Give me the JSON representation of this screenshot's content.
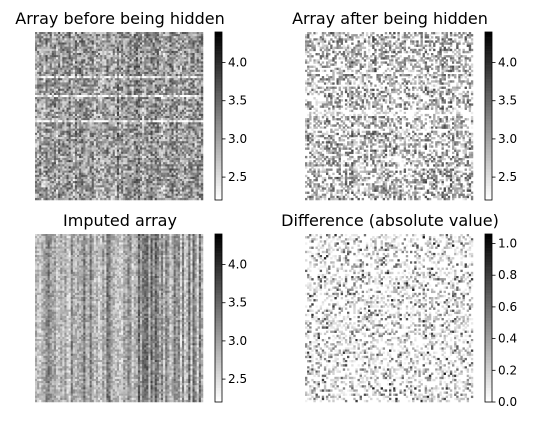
{
  "chart_data": [
    {
      "type": "heatmap",
      "title": "Array before being hidden",
      "colormap": "gray_r",
      "vmin": 2.2,
      "vmax": 4.4,
      "colorbar_ticks": [
        "2.5",
        "3.0",
        "3.5",
        "4.0"
      ],
      "grid": "80x80",
      "pattern": "dense",
      "seed": 11
    },
    {
      "type": "heatmap",
      "title": "Array after being hidden",
      "colormap": "gray_r",
      "vmin": 2.2,
      "vmax": 4.4,
      "colorbar_ticks": [
        "2.5",
        "3.0",
        "3.5",
        "4.0"
      ],
      "grid": "80x80",
      "pattern": "masked",
      "seed": 23
    },
    {
      "type": "heatmap",
      "title": "Imputed array",
      "colormap": "gray_r",
      "vmin": 2.2,
      "vmax": 4.4,
      "colorbar_ticks": [
        "2.5",
        "3.0",
        "3.5",
        "4.0"
      ],
      "grid": "80x80",
      "pattern": "columns",
      "seed": 37
    },
    {
      "type": "heatmap",
      "title": "Difference (absolute value)",
      "colormap": "gray_r",
      "vmin": 0.0,
      "vmax": 1.06,
      "colorbar_ticks": [
        "0.0",
        "0.2",
        "0.4",
        "0.6",
        "0.8",
        "1.0"
      ],
      "grid": "80x80",
      "pattern": "sparse",
      "seed": 53
    }
  ]
}
